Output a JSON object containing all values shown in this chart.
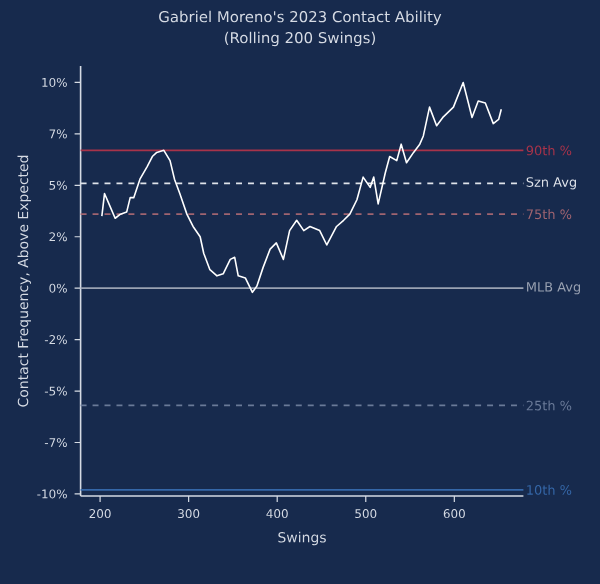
{
  "chart_data": {
    "type": "line",
    "title": "Gabriel Moreno's 2023 Contact Ability",
    "subtitle": "(Rolling 200 Swings)",
    "xlabel": "Swings",
    "ylabel": "Contact Frequency, Above Expected",
    "xlim": [
      178,
      678
    ],
    "ylim": [
      -10.1,
      10.8
    ],
    "xticks": [
      200,
      300,
      400,
      500,
      600
    ],
    "yticks": [
      {
        "value": -10,
        "label": "-10%"
      },
      {
        "value": -7.5,
        "label": "-7%"
      },
      {
        "value": -5,
        "label": "-5%"
      },
      {
        "value": -2.5,
        "label": "-2%"
      },
      {
        "value": 0,
        "label": "0%"
      },
      {
        "value": 2.5,
        "label": "2%"
      },
      {
        "value": 5,
        "label": "5%"
      },
      {
        "value": 7.5,
        "label": "7%"
      },
      {
        "value": 10,
        "label": "10%"
      }
    ],
    "series": [
      {
        "color": "#ffffff",
        "x": [
          202,
          205,
          211,
          217,
          223,
          230,
          234,
          238,
          245,
          253,
          259,
          264,
          272,
          279,
          284,
          290,
          298,
          305,
          313,
          317,
          324,
          332,
          339,
          347,
          352,
          356,
          364,
          372,
          377,
          384,
          392,
          399,
          407,
          414,
          422,
          430,
          437,
          448,
          456,
          467,
          475,
          482,
          490,
          497,
          505,
          509,
          514,
          522,
          527,
          535,
          540,
          546,
          554,
          561,
          565,
          572,
          580,
          587,
          599,
          610,
          620,
          627,
          635,
          644,
          650,
          653
        ],
        "values": [
          3.5,
          4.6,
          4.0,
          3.4,
          3.6,
          3.7,
          4.4,
          4.4,
          5.3,
          5.9,
          6.4,
          6.6,
          6.7,
          6.2,
          5.3,
          4.6,
          3.6,
          3.0,
          2.5,
          1.7,
          0.9,
          0.6,
          0.7,
          1.4,
          1.5,
          0.6,
          0.5,
          -0.2,
          0.1,
          1.0,
          1.9,
          2.2,
          1.4,
          2.8,
          3.3,
          2.8,
          3.0,
          2.8,
          2.1,
          3.0,
          3.3,
          3.6,
          4.3,
          5.4,
          4.9,
          5.4,
          4.1,
          5.6,
          6.4,
          6.2,
          7.0,
          6.1,
          6.6,
          7.0,
          7.4,
          8.8,
          7.9,
          8.3,
          8.8,
          10.0,
          8.3,
          9.1,
          9.0,
          8.0,
          8.2,
          8.7
        ]
      }
    ],
    "ref_lines": [
      {
        "axis": "y",
        "value": 6.7,
        "label": "90th %",
        "color": "#a8334a",
        "line_style": "solid"
      },
      {
        "axis": "y",
        "value": 5.1,
        "label": "Szn Avg",
        "color": "#dfe3ea",
        "line_style": "dashed"
      },
      {
        "axis": "y",
        "value": 3.6,
        "label": "75th %",
        "color": "#a06470",
        "line_style": "dashed"
      },
      {
        "axis": "y",
        "value": 0,
        "label": "MLB Avg",
        "color": "#9aa2b2",
        "line_style": "solid"
      },
      {
        "axis": "y",
        "value": -5.7,
        "label": "25th %",
        "color": "#6a7a98",
        "line_style": "dashed"
      },
      {
        "axis": "y",
        "value": -9.8,
        "label": "10th %",
        "color": "#3567a8",
        "line_style": "solid"
      }
    ]
  }
}
